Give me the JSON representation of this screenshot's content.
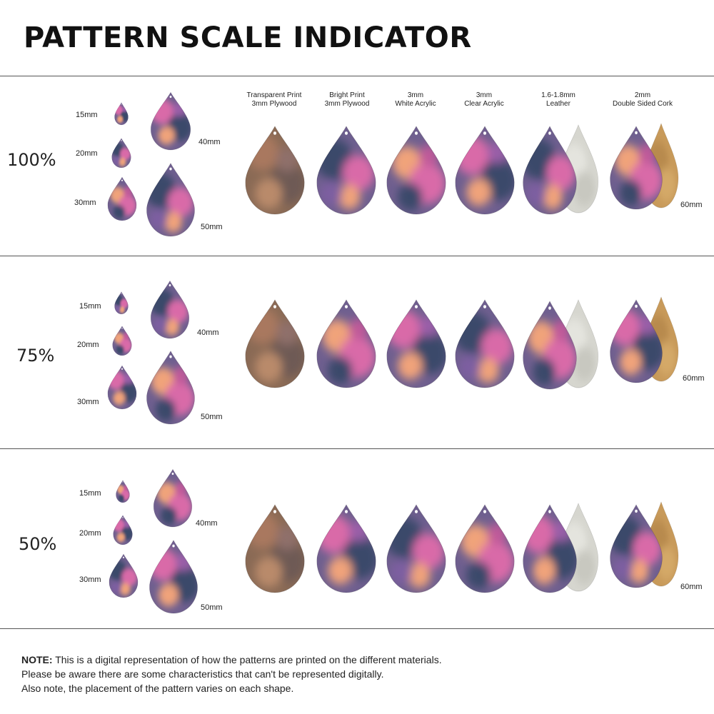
{
  "title": "PATTERN SCALE INDICATOR",
  "materials": [
    {
      "line1": "Transparent Print",
      "line2": "3mm Plywood"
    },
    {
      "line1": "Bright Print",
      "line2": "3mm Plywood"
    },
    {
      "line1": "3mm",
      "line2": "White Acrylic"
    },
    {
      "line1": "3mm",
      "line2": "Clear Acrylic"
    },
    {
      "line1": "1.6-1.8mm",
      "line2": "Leather"
    },
    {
      "line1": "2mm",
      "line2": "Double Sided Cork"
    }
  ],
  "sections": [
    {
      "scale": "100%",
      "sizes": {
        "s15": "15mm",
        "s20": "20mm",
        "s30": "30mm",
        "s40": "40mm",
        "s50": "50mm",
        "s60": "60mm"
      }
    },
    {
      "scale": "75%",
      "sizes": {
        "s15": "15mm",
        "s20": "20mm",
        "s30": "30mm",
        "s40": "40mm",
        "s50": "50mm",
        "s60": "60mm"
      }
    },
    {
      "scale": "50%",
      "sizes": {
        "s15": "15mm",
        "s20": "20mm",
        "s30": "30mm",
        "s40": "40mm",
        "s50": "50mm",
        "s60": "60mm"
      }
    }
  ],
  "note": {
    "label": "NOTE:",
    "line1": " This is a digital representation of how the patterns are printed on the different materials.",
    "line2": "Please be aware there are some characteristics that can't be represented digitally.",
    "line3": "Also note, the placement of the pattern varies on each shape."
  },
  "colors": {
    "navy": "#3b4a6b",
    "pink": "#d96aa8",
    "peach": "#f0a37a",
    "plywood": "#8a6a55",
    "leather_backing": "#d6d6cf",
    "cork": "#c89a5a"
  }
}
